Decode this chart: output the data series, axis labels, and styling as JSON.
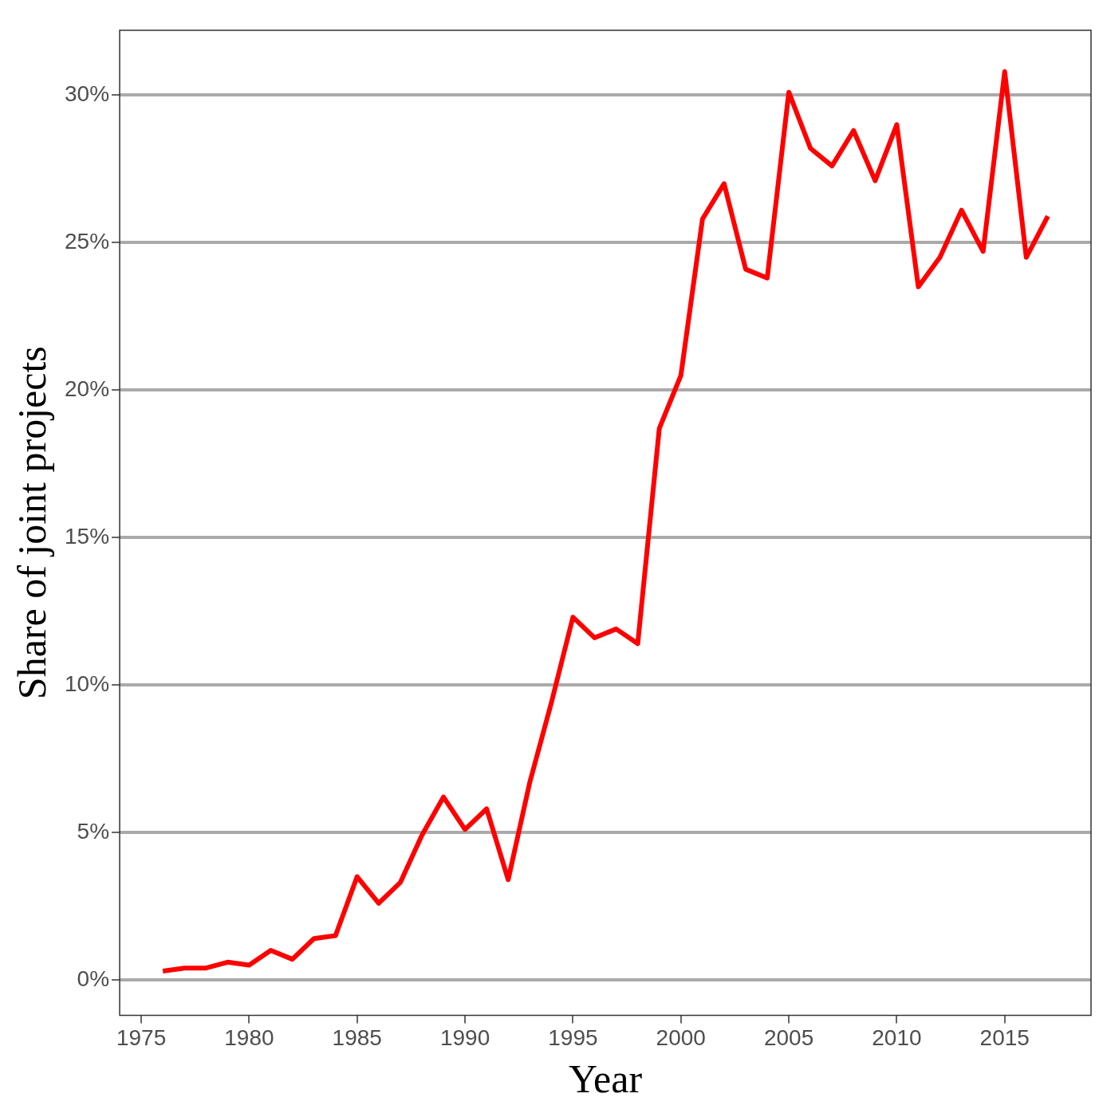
{
  "chart_data": {
    "type": "line",
    "xlabel": "Year",
    "ylabel": "Share of joint projects",
    "x": [
      1976,
      1977,
      1978,
      1979,
      1980,
      1981,
      1982,
      1983,
      1984,
      1985,
      1986,
      1987,
      1988,
      1989,
      1990,
      1991,
      1992,
      1993,
      1994,
      1995,
      1996,
      1997,
      1998,
      1999,
      2000,
      2001,
      2002,
      2003,
      2004,
      2005,
      2006,
      2007,
      2008,
      2009,
      2010,
      2011,
      2012,
      2013,
      2014,
      2015,
      2016,
      2017
    ],
    "series": [
      {
        "color": "#ff0000",
        "values": [
          0.3,
          0.4,
          0.4,
          0.6,
          0.5,
          1.0,
          0.7,
          1.4,
          1.5,
          3.5,
          2.6,
          3.3,
          4.9,
          6.2,
          5.1,
          5.8,
          3.4,
          6.7,
          9.4,
          12.3,
          11.6,
          11.9,
          11.4,
          18.7,
          20.5,
          25.8,
          27.0,
          24.1,
          23.8,
          30.1,
          28.2,
          27.6,
          28.8,
          27.1,
          29.0,
          23.5,
          24.5,
          26.1,
          24.7,
          30.8,
          24.5,
          25.9
        ]
      }
    ],
    "xlim": [
      1974,
      2019
    ],
    "xticks": [
      1975,
      1980,
      1985,
      1990,
      1995,
      2000,
      2005,
      2010,
      2015
    ],
    "ylim": [
      -1.2,
      32.2
    ],
    "yticks": [
      {
        "value": 0,
        "label": "0%"
      },
      {
        "value": 5,
        "label": "5%"
      },
      {
        "value": 10,
        "label": "10%"
      },
      {
        "value": 15,
        "label": "15%"
      },
      {
        "value": 20,
        "label": "20%"
      },
      {
        "value": 25,
        "label": "25%"
      },
      {
        "value": 30,
        "label": "30%"
      }
    ],
    "grid": "y",
    "legend": false,
    "marker": "none",
    "line_style": "solid"
  }
}
